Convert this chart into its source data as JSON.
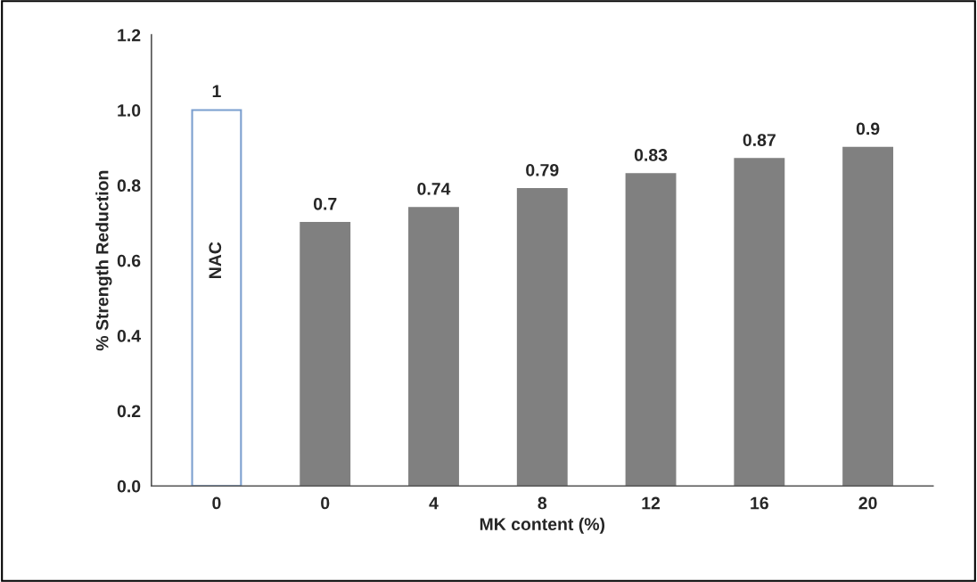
{
  "chart_data": {
    "type": "bar",
    "xlabel": "MK content (%)",
    "ylabel": "% Strength Reduction",
    "categories": [
      "0",
      "0",
      "4",
      "8",
      "12",
      "16",
      "20"
    ],
    "values": [
      1,
      0.7,
      0.74,
      0.79,
      0.83,
      0.87,
      0.9
    ],
    "colors": [
      "#ffffff",
      "#808080",
      "#808080",
      "#808080",
      "#808080",
      "#808080",
      "#808080"
    ],
    "ylim": [
      0,
      1.2
    ],
    "yticks": [
      {
        "value": 0,
        "label": "0.0"
      },
      {
        "value": 0.2,
        "label": "0.2"
      },
      {
        "value": 0.4,
        "label": "0.4"
      },
      {
        "value": 0.6,
        "label": "0.6"
      },
      {
        "value": 0.8,
        "label": "0.8"
      },
      {
        "value": 1.0,
        "label": "1.0"
      },
      {
        "value": 1.2,
        "label": "1.2"
      }
    ],
    "data_labels": true,
    "grid": false,
    "annotations": [
      "NAC"
    ]
  }
}
